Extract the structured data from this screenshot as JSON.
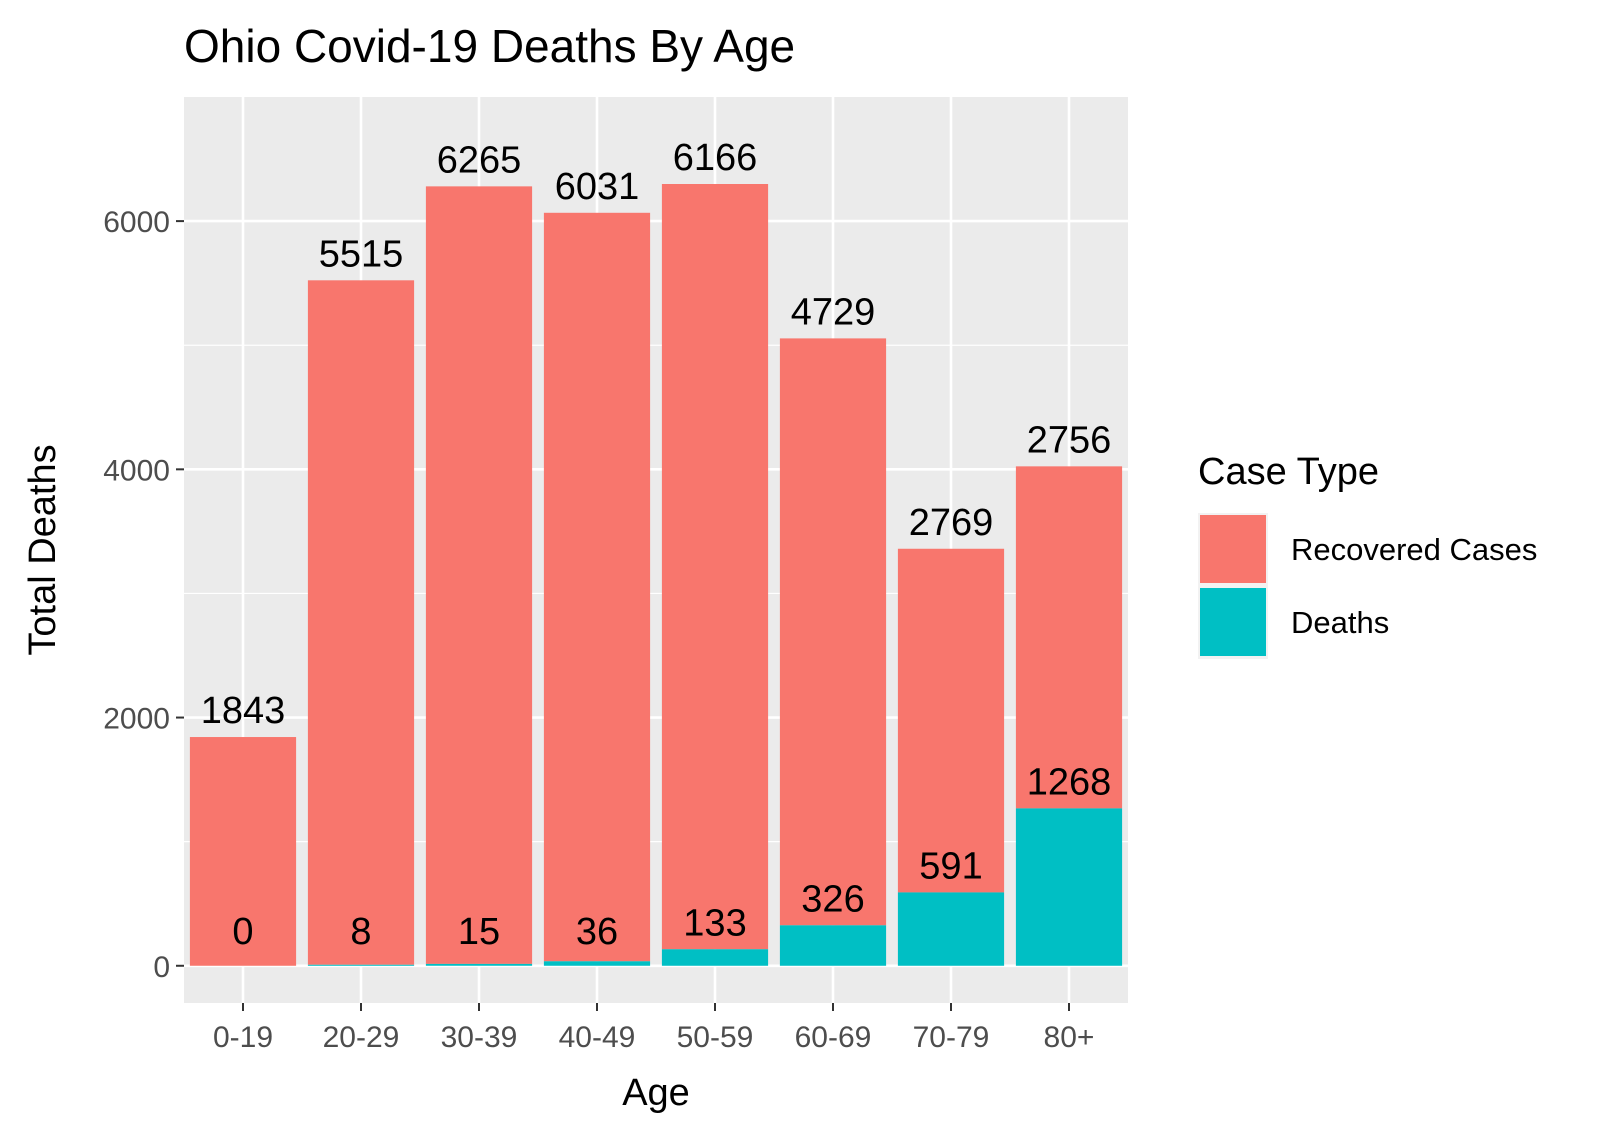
{
  "chart_data": {
    "type": "bar",
    "stacked": true,
    "title": "Ohio Covid-19 Deaths By Age",
    "xlabel": "Age",
    "ylabel": "Total Deaths",
    "categories": [
      "0-19",
      "20-29",
      "30-39",
      "40-49",
      "50-59",
      "60-69",
      "70-79",
      "80+"
    ],
    "series": [
      {
        "name": "Recovered Cases",
        "color": "#F8766D",
        "values": [
          1843,
          5515,
          6265,
          6031,
          6166,
          4729,
          2769,
          2756
        ]
      },
      {
        "name": "Deaths",
        "color": "#00BFC4",
        "values": [
          0,
          8,
          15,
          36,
          133,
          326,
          591,
          1268
        ]
      }
    ],
    "ylim": [
      -300,
      7000
    ],
    "yticks": [
      0,
      2000,
      4000,
      6000
    ],
    "ytick_labels": [
      "0",
      "2000",
      "4000",
      "6000"
    ],
    "grid": true,
    "panel_background": "#EBEBEB",
    "legend": {
      "title": "Case Type",
      "position": "right"
    }
  }
}
